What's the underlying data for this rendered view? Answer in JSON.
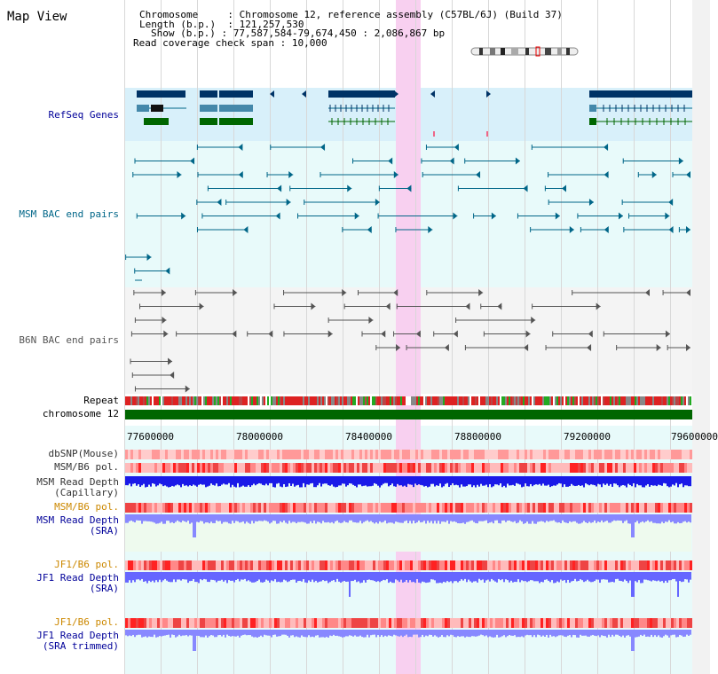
{
  "header": {
    "title": "Map View",
    "chromosome_label": "Chromosome",
    "chromosome_value": "Chromosome 12, reference assembly (C57BL/6J) (Build 37)",
    "length_label": "Length (b.p.)",
    "length_value": "121,257,530",
    "show_label": "Show (b.p.)",
    "show_value": "77,587,584-79,674,450 : 2,086,867 bp",
    "coverage_label": "Read coverage check span",
    "coverage_value": "10,000"
  },
  "tracks": {
    "refseq": "RefSeq Genes",
    "msm_bac": "MSM BAC end pairs",
    "b6n_bac": "B6N BAC end pairs",
    "repeat": "Repeat",
    "chromosome": "chromosome 12",
    "dbsnp": "dbSNP(Mouse)",
    "msm_b6_pol": "MSM/B6 pol.",
    "msm_depth_cap_1": "MSM Read Depth",
    "msm_depth_cap_2": "(Capillary)",
    "msm_b6_pol2": "MSM/B6 pol.",
    "msm_depth_sra_1": "MSM Read Depth",
    "msm_depth_sra_2": "(SRA)",
    "jf1_b6_pol": "JF1/B6 pol.",
    "jf1_depth_sra_1": "JF1 Read Depth",
    "jf1_depth_sra_2": "(SRA)",
    "jf1_b6_pol2": "JF1/B6 pol.",
    "jf1_depth_trim_1": "JF1 Read Depth",
    "jf1_depth_trim_2": "(SRA trimmed)"
  },
  "axis": {
    "ticks": [
      "77600000",
      "78000000",
      "78400000",
      "78800000",
      "79200000",
      "79600000"
    ]
  },
  "colors": {
    "refseq_bg": "#d8f0fa",
    "msm_bac_bg": "#e8fafa",
    "b6n_bac_bg": "#f4f4f4",
    "lower_bg": "#e8fafa",
    "highlight": "#f8d0f0",
    "navy": "#003366",
    "teal": "#006688",
    "green": "#006600",
    "gray": "#555555",
    "blue_label": "#000099",
    "orange_label": "#cc8800",
    "pol_red": "#ee4444",
    "depth_blue": "#2222ee",
    "depth_light": "#8888ff"
  }
}
